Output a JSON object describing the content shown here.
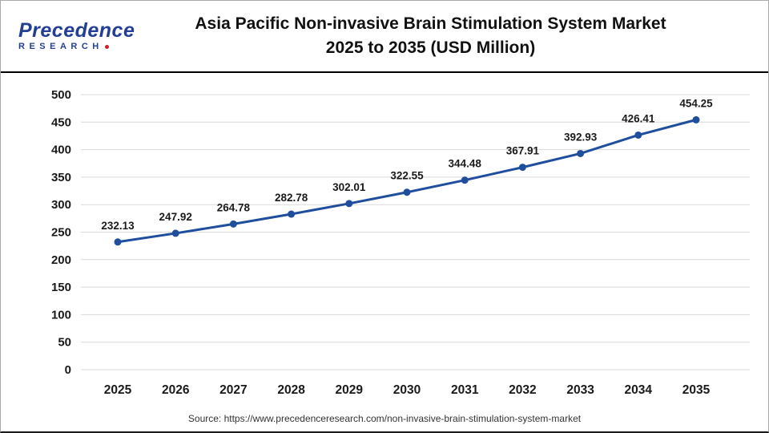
{
  "header": {
    "logo": {
      "line1": "Precedence",
      "line2": "RESEARCH"
    },
    "title_line1": "Asia Pacific Non-invasive Brain Stimulation System Market",
    "title_line2": "2025 to 2035  (USD Million)"
  },
  "footer": {
    "source": "Source: https://www.precedenceresearch.com/non-invasive-brain-stimulation-system-market"
  },
  "chart_data": {
    "type": "line",
    "title": "Asia Pacific Non-invasive Brain Stimulation System Market 2025 to 2035 (USD Million)",
    "categories": [
      "2025",
      "2026",
      "2027",
      "2028",
      "2029",
      "2030",
      "2031",
      "2032",
      "2033",
      "2034",
      "2035"
    ],
    "values": [
      232.13,
      247.92,
      264.78,
      282.78,
      302.01,
      322.55,
      344.48,
      367.91,
      392.93,
      426.41,
      454.25
    ],
    "xlabel": "",
    "ylabel": "",
    "ylim": [
      0,
      500
    ],
    "yticks": [
      0,
      50,
      100,
      150,
      200,
      250,
      300,
      350,
      400,
      450,
      500
    ],
    "grid": true,
    "legend": "none",
    "line_color": "#1f4e9d",
    "grid_color": "#d9d9d9",
    "label_color": "#1a1a1a"
  }
}
